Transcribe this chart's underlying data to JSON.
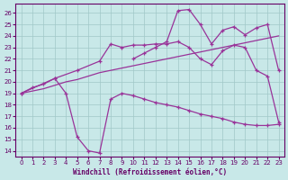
{
  "background_color": "#c8e8e8",
  "grid_color": "#a0c8c8",
  "line_color": "#993399",
  "xlabel": "Windchill (Refroidissement éolien,°C)",
  "ylim": [
    13.5,
    26.8
  ],
  "xlim": [
    -0.5,
    23.5
  ],
  "yticks": [
    14,
    15,
    16,
    17,
    18,
    19,
    20,
    21,
    22,
    23,
    24,
    25,
    26
  ],
  "xticks": [
    0,
    1,
    2,
    3,
    4,
    5,
    6,
    7,
    8,
    9,
    10,
    11,
    12,
    13,
    14,
    15,
    16,
    17,
    18,
    19,
    20,
    21,
    22,
    23
  ],
  "line_straight_x": [
    0,
    1,
    2,
    3,
    4,
    5,
    6,
    7,
    8,
    9,
    10,
    11,
    12,
    13,
    14,
    15,
    16,
    17,
    18,
    19,
    20,
    21,
    22,
    23
  ],
  "line_straight_y": [
    19.0,
    19.2,
    19.4,
    19.7,
    20.0,
    20.2,
    20.5,
    20.8,
    21.0,
    21.2,
    21.4,
    21.6,
    21.8,
    22.0,
    22.2,
    22.4,
    22.6,
    22.8,
    23.0,
    23.2,
    23.4,
    23.6,
    23.8,
    24.0
  ],
  "line_dip_x": [
    0,
    1,
    2,
    3,
    4,
    5,
    6,
    7,
    8,
    9,
    10,
    11,
    12,
    13,
    14,
    15,
    16,
    17,
    18,
    19,
    20,
    21,
    22,
    23
  ],
  "line_dip_y": [
    19.0,
    19.5,
    19.8,
    20.3,
    19.0,
    15.2,
    14.0,
    13.8,
    18.5,
    19.0,
    18.8,
    18.5,
    18.2,
    18.0,
    17.8,
    17.5,
    17.2,
    17.0,
    16.8,
    16.5,
    16.3,
    16.2,
    16.2,
    16.3
  ],
  "line_mid_x": [
    0,
    3,
    5,
    7,
    8,
    9,
    10,
    11,
    12,
    13,
    14,
    15,
    16,
    17,
    18,
    19,
    20,
    21,
    22,
    23
  ],
  "line_mid_y": [
    19.0,
    20.3,
    21.0,
    21.8,
    23.3,
    23.0,
    23.2,
    23.2,
    23.3,
    23.3,
    23.5,
    23.0,
    22.0,
    21.5,
    22.7,
    23.2,
    23.0,
    21.0,
    20.5,
    16.5
  ],
  "line_peak_x": [
    10,
    11,
    12,
    13,
    14,
    15,
    16,
    17,
    18,
    19,
    20,
    21,
    22,
    23
  ],
  "line_peak_y": [
    22.0,
    22.5,
    23.0,
    23.5,
    26.2,
    26.3,
    25.0,
    23.3,
    24.5,
    24.8,
    24.1,
    24.7,
    25.0,
    21.0
  ]
}
